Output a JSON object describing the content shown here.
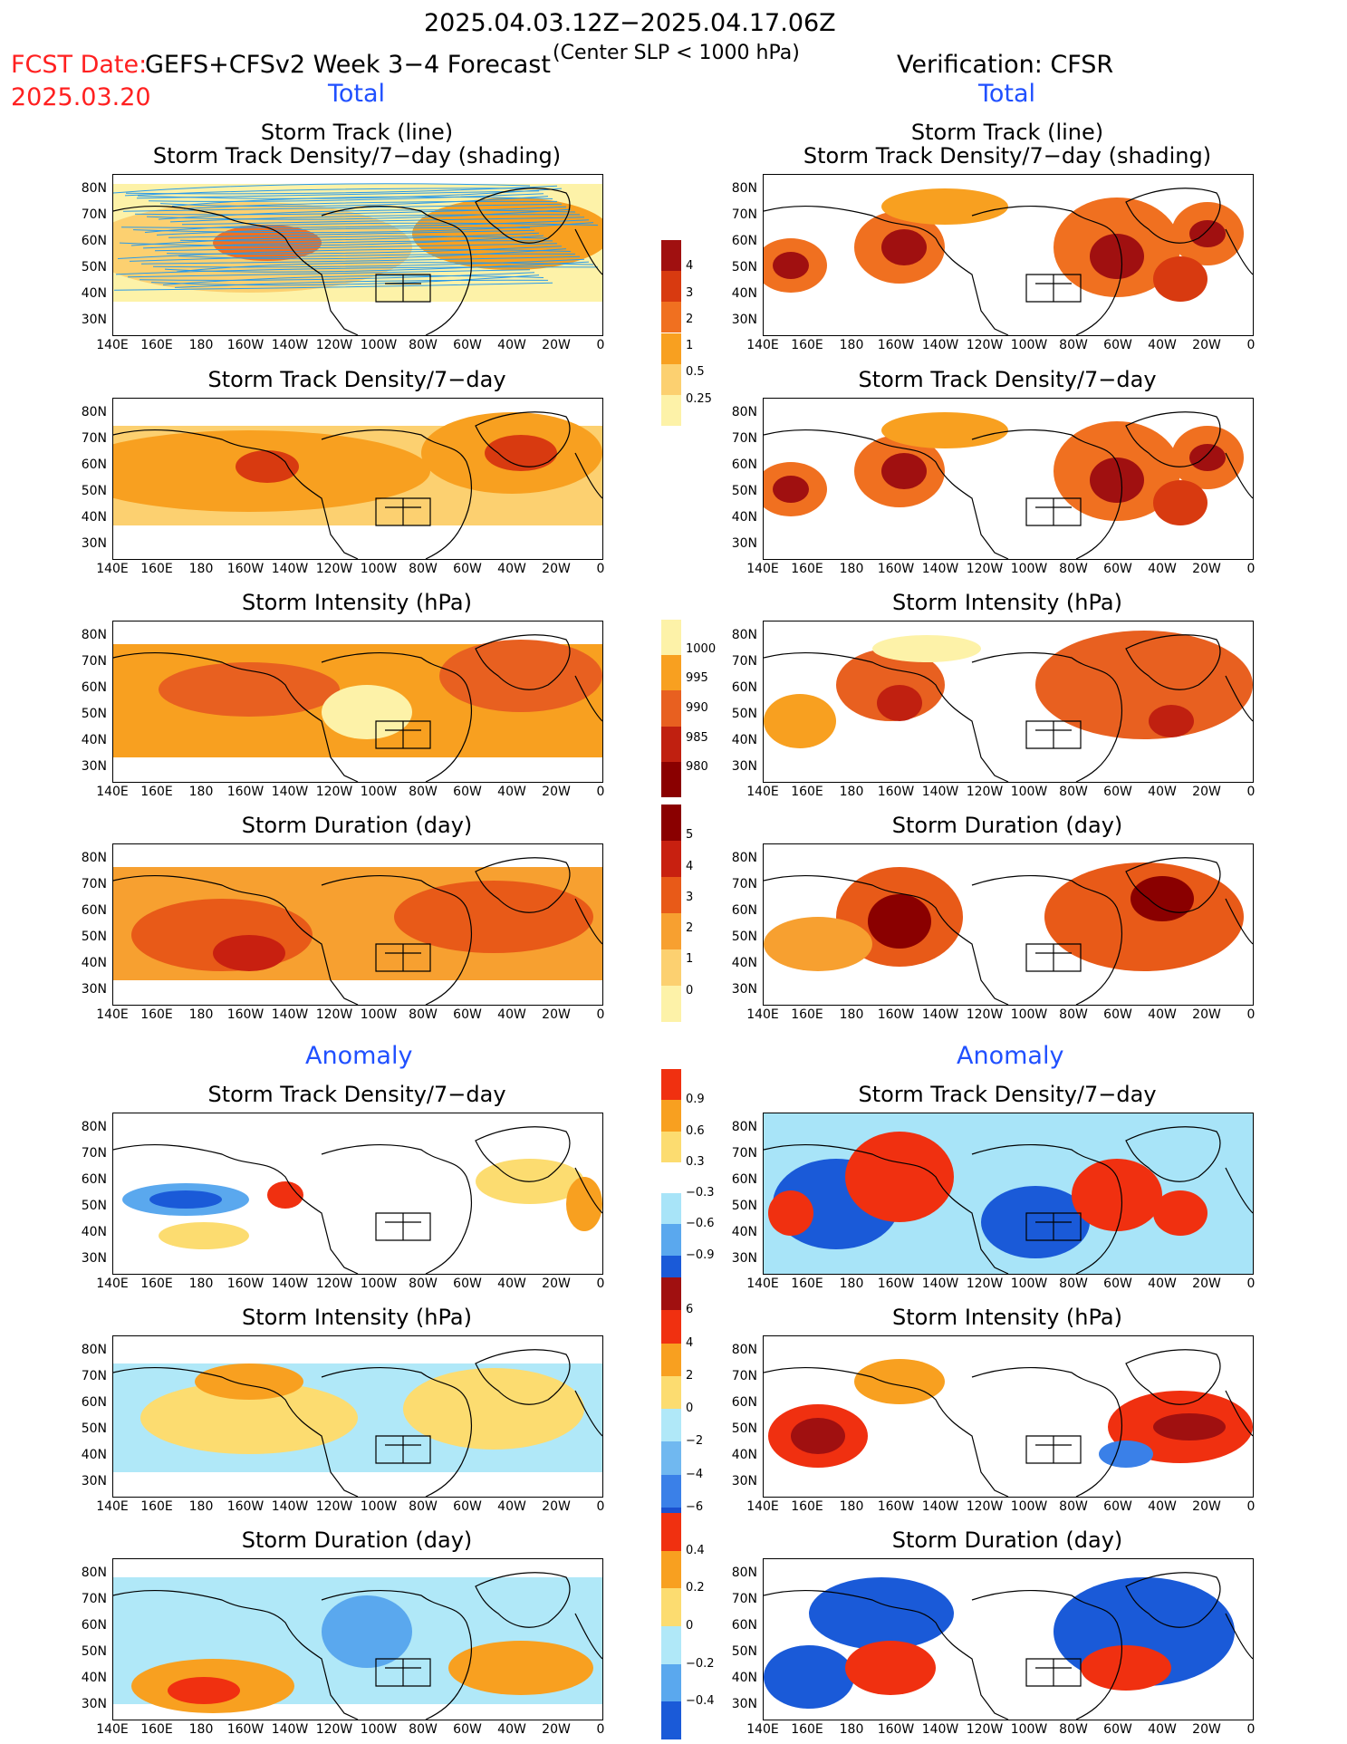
{
  "header": {
    "date_range": "2025.04.03.12Z−2025.04.17.06Z",
    "fcst_label": "FCST Date:",
    "fcst_date": "2025.03.20",
    "model": "GEFS+CFSv2 Week 3−4 Forecast",
    "criterion": "(Center SLP < 1000 hPa)",
    "verification": "Verification: CFSR"
  },
  "sections": {
    "total": "Total",
    "anomaly": "Anomaly"
  },
  "panel_titles": {
    "track_line": "Storm Track (line)",
    "track_shading": "Storm Track Density/7−day (shading)",
    "track_density": "Storm Track Density/7−day",
    "intensity": "Storm Intensity (hPa)",
    "duration": "Storm Duration (day)"
  },
  "axes": {
    "lat_ticks": [
      "80N",
      "70N",
      "60N",
      "50N",
      "40N",
      "30N"
    ],
    "lon_ticks": [
      "140E",
      "160E",
      "180",
      "160W",
      "140W",
      "120W",
      "100W",
      "80W",
      "60W",
      "40W",
      "20W",
      "0"
    ]
  },
  "colorbars": {
    "density": {
      "labels": [
        "4",
        "3",
        "2",
        "1",
        "0.5",
        "0.25"
      ],
      "colors": [
        "#a01010",
        "#d83a10",
        "#f07020",
        "#f8a020",
        "#fcd070",
        "#fdf2a8"
      ]
    },
    "intensity": {
      "labels": [
        "1000",
        "995",
        "990",
        "985",
        "980"
      ],
      "colors": [
        "#fdf2a8",
        "#f8a020",
        "#e86020",
        "#c02010",
        "#8a0000"
      ]
    },
    "duration": {
      "labels": [
        "5",
        "4",
        "3",
        "2",
        "1",
        "0"
      ],
      "colors": [
        "#8a0000",
        "#c82010",
        "#e85a18",
        "#f7a030",
        "#fcd070",
        "#fdf2a8"
      ]
    },
    "anom_density": {
      "labels": [
        "0.9",
        "0.6",
        "0.3",
        "−0.3",
        "−0.6",
        "−0.9"
      ],
      "colors": [
        "#f03010",
        "#f8a020",
        "#fcdc70",
        "#ffffff",
        "#a8e4f8",
        "#5aa8ee",
        "#1a5ad8"
      ]
    },
    "anom_intensity": {
      "labels": [
        "6",
        "4",
        "2",
        "0",
        "−2",
        "−4",
        "−6"
      ],
      "colors": [
        "#a01010",
        "#f03010",
        "#f8a020",
        "#fcdc70",
        "#b0e8f8",
        "#70b8f0",
        "#3a80e8",
        "#1a50d0"
      ]
    },
    "anom_duration": {
      "labels": [
        "0.4",
        "0.2",
        "0",
        "−0.2",
        "−0.4"
      ],
      "colors": [
        "#f03010",
        "#f8a020",
        "#fcdc70",
        "#b0e8f8",
        "#5aa8ee",
        "#1a5ad8"
      ]
    }
  },
  "colors": {
    "forecast_label": "#ff2020",
    "section_label": "#2050ff",
    "track_line": "#2a9ae8"
  }
}
